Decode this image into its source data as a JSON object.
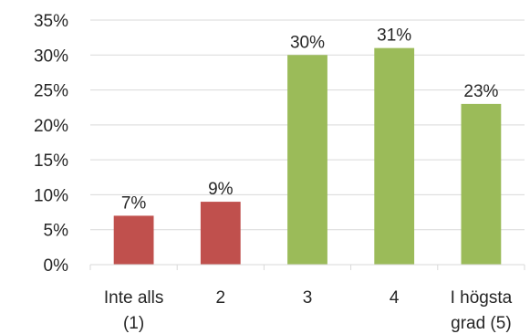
{
  "chart_data": {
    "type": "bar",
    "categories": [
      [
        "Inte alls",
        "(1)"
      ],
      [
        "2"
      ],
      [
        "3"
      ],
      [
        "4"
      ],
      [
        "I högsta",
        "grad (5)"
      ]
    ],
    "values": [
      7,
      9,
      30,
      31,
      23
    ],
    "data_labels": [
      "7%",
      "9%",
      "30%",
      "31%",
      "23%"
    ],
    "bar_colors": [
      "#c0504d",
      "#c0504d",
      "#9bbb59",
      "#9bbb59",
      "#9bbb59"
    ],
    "ylim": [
      0,
      35
    ],
    "y_ticks": [
      0,
      5,
      10,
      15,
      20,
      25,
      30,
      35
    ],
    "y_tick_labels": [
      "0%",
      "5%",
      "10%",
      "15%",
      "20%",
      "25%",
      "30%",
      "35%"
    ],
    "grid": true,
    "title": "",
    "xlabel": "",
    "ylabel": ""
  }
}
